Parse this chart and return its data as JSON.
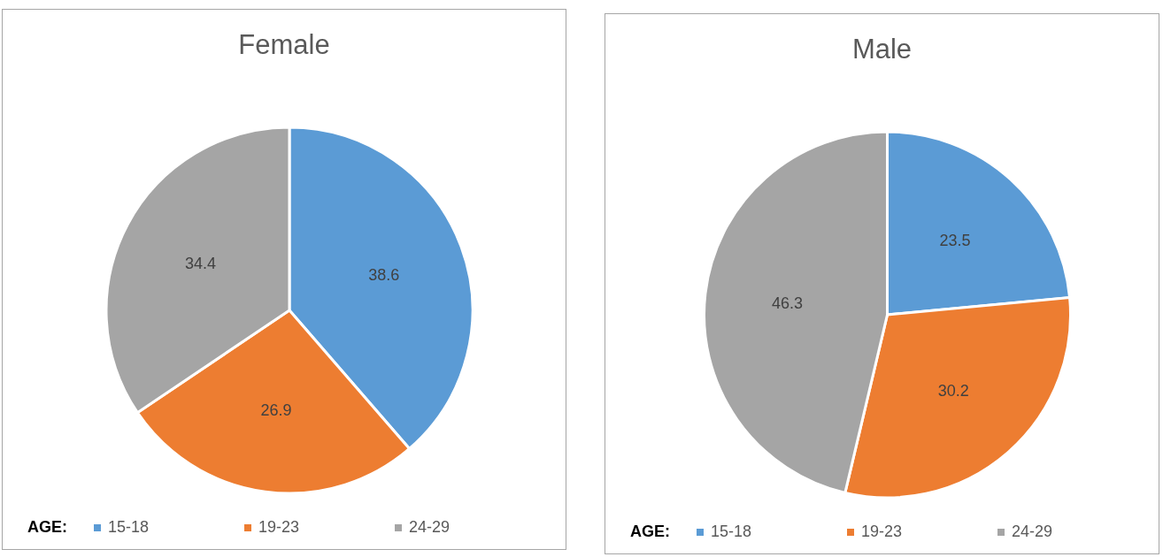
{
  "chart_data": [
    {
      "type": "pie",
      "title": "Female",
      "legend_title": "AGE:",
      "categories": [
        "15-18",
        "19-23",
        "24-29"
      ],
      "values": [
        38.6,
        26.9,
        34.4
      ],
      "colors": [
        "#5b9bd5",
        "#ed7d31",
        "#a5a5a5"
      ],
      "data_labels": true,
      "legend": "bottom"
    },
    {
      "type": "pie",
      "title": "Male",
      "legend_title": "AGE:",
      "categories": [
        "15-18",
        "19-23",
        "24-29"
      ],
      "values": [
        23.5,
        30.2,
        46.3
      ],
      "colors": [
        "#5b9bd5",
        "#ed7d31",
        "#a5a5a5"
      ],
      "data_labels": true,
      "legend": "bottom"
    }
  ]
}
